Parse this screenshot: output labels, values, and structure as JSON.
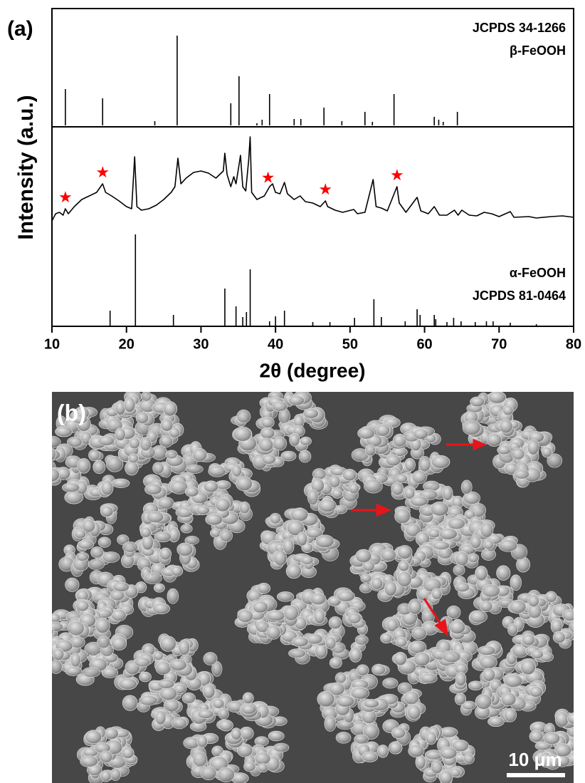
{
  "chart_data": [
    {
      "type": "bar",
      "labels": [
        "JCPDS 34-1266",
        "β-FeOOH"
      ],
      "color": "#000000",
      "xlim": [
        10,
        80
      ],
      "ylim": [
        0,
        130
      ],
      "x": [
        11.8,
        16.8,
        23.8,
        26.8,
        34.0,
        35.1,
        37.5,
        38.2,
        39.2,
        42.5,
        43.4,
        46.5,
        48.9,
        52.0,
        53.0,
        55.9,
        61.3,
        61.9,
        62.5,
        64.4
      ],
      "values": [
        51,
        38,
        6,
        126,
        31,
        69,
        3,
        8,
        44,
        9,
        9,
        25,
        6,
        19,
        5,
        44,
        12,
        8,
        5,
        19
      ]
    },
    {
      "type": "line",
      "color": "#000000",
      "xlim": [
        10,
        80
      ],
      "ylim": [
        0,
        170
      ],
      "x": [
        10,
        10.5,
        11,
        11.5,
        11.8,
        12.2,
        13,
        14,
        15,
        16,
        16.8,
        17.2,
        18,
        19,
        20,
        20.7,
        21.1,
        21.4,
        22,
        23,
        24,
        25,
        26,
        26.5,
        26.9,
        27.3,
        28,
        29,
        30,
        31,
        32,
        33,
        33.2,
        33.5,
        34,
        34.4,
        34.7,
        35.1,
        35.3,
        35.6,
        36,
        36.4,
        36.6,
        36.8,
        37.5,
        38.5,
        39.2,
        39.6,
        40,
        40.6,
        41.2,
        41.6,
        42.5,
        43.3,
        44,
        45,
        46,
        46.7,
        47,
        48,
        49,
        50.5,
        51,
        52,
        53.1,
        53.5,
        54.2,
        55,
        56.3,
        56.6,
        57.5,
        59,
        59.5,
        60.5,
        61.3,
        62,
        63,
        64,
        64.5,
        65,
        66,
        67,
        68,
        69,
        70,
        71.5,
        72,
        74,
        75,
        77,
        78.5,
        80
      ],
      "values": [
        20,
        30,
        32,
        28,
        37,
        30,
        40,
        50,
        55,
        60,
        72,
        60,
        55,
        48,
        40,
        37,
        110,
        40,
        35,
        37,
        42,
        50,
        60,
        68,
        108,
        72,
        80,
        88,
        90,
        87,
        80,
        90,
        115,
        85,
        68,
        82,
        72,
        98,
        112,
        68,
        62,
        105,
        138,
        60,
        50,
        55,
        68,
        72,
        60,
        58,
        74,
        58,
        50,
        55,
        47,
        45,
        40,
        48,
        40,
        35,
        32,
        36,
        30,
        32,
        78,
        40,
        38,
        34,
        68,
        45,
        32,
        53,
        34,
        30,
        40,
        28,
        28,
        35,
        28,
        35,
        28,
        27,
        32,
        30,
        26,
        33,
        25,
        26,
        24,
        26,
        27,
        25
      ],
      "markers": {
        "symbol": "★",
        "color": "#ff0000",
        "x": [
          11.8,
          16.8,
          39.0,
          46.7,
          56.3
        ]
      }
    },
    {
      "type": "bar",
      "labels": [
        "α-FeOOH",
        "JCPDS 81-0464"
      ],
      "color": "#000000",
      "panel_label": "(a)",
      "x_label": "2θ (degree)",
      "y_label": "Intensity (a.u.)",
      "xlim": [
        10,
        80
      ],
      "ylim": [
        0,
        130
      ],
      "xticks": [
        10,
        20,
        30,
        40,
        50,
        60,
        70,
        80
      ],
      "x": [
        17.8,
        21.2,
        26.3,
        33.2,
        34.7,
        35.6,
        36.1,
        36.6,
        39.2,
        40.0,
        41.2,
        45.0,
        47.3,
        50.6,
        53.2,
        54.2,
        57.4,
        59.0,
        59.4,
        61.3,
        61.5,
        63.0,
        63.9,
        64.9,
        66.8,
        68.3,
        69.2,
        71.5,
        75.0
      ],
      "values": [
        22,
        129,
        16,
        53,
        28,
        13,
        20,
        80,
        7,
        14,
        22,
        6,
        6,
        12,
        38,
        13,
        7,
        24,
        16,
        16,
        10,
        6,
        12,
        7,
        6,
        7,
        7,
        5,
        3
      ]
    }
  ],
  "image": {
    "panel_label": "(b)",
    "scale_bar": "10 μm"
  }
}
